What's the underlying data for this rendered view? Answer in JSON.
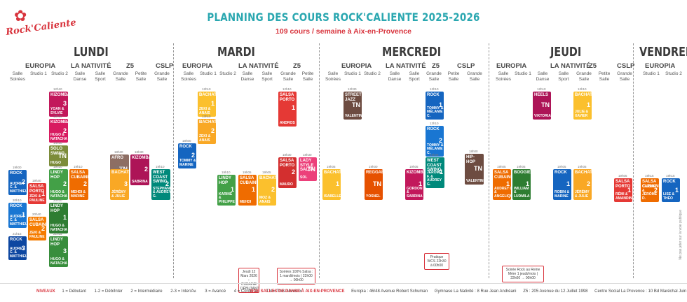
{
  "brand": "Rock'Caliente",
  "title": "PLANNING DES COURS ROCK'CALIENTE 2025-2026",
  "subtitle": "109 cours / semaine à Aix-en-Provence",
  "days": [
    "LUNDI",
    "MARDI",
    "MERCREDI",
    "JEUDI",
    "VENDREDI"
  ],
  "venues": {
    "lundi": [
      "EUROPIA",
      "LA NATIVITÉ",
      "Z5",
      "CSLP"
    ],
    "mardi": [
      "EUROPIA",
      "LA NATIVITÉ",
      "Z5"
    ],
    "mercredi": [
      "EUROPIA",
      "LA NATIVITÉ",
      "Z5",
      "CSLP"
    ],
    "jeudi": [
      "EUROPIA",
      "LA NATIVITÉ",
      "Z5",
      "CSLP"
    ],
    "vendredi": [
      "EUROPIA"
    ]
  },
  "rooms": {
    "salle_soirees": "Salle Soirées",
    "studio1": "Studio 1",
    "studio2": "Studio 2",
    "salle_danse": "Salle Danse",
    "salle_sport": "Salle Sport",
    "grande_salle": "Grande Salle",
    "petite_salle": "Petite Salle"
  },
  "cards": [
    {
      "name": "KIZOMBA",
      "level": "3",
      "teacher": "YOAN & SYLVIE",
      "time": "12h10",
      "color": "#c2185b"
    },
    {
      "name": "KIZOMBA",
      "level": "2",
      "teacher": "HUGO & NATACHA",
      "time": "13h10",
      "color": "#d81b60"
    },
    {
      "name": "SOLO SWING",
      "level": "TN",
      "teacher": "HUGO",
      "time": "14h10",
      "color": "#7c8c3a"
    },
    {
      "name": "ROCK",
      "level": "2",
      "teacher": "AUDREY C. & MATTHIEU",
      "time": "19h00",
      "color": "#1565c0"
    },
    {
      "name": "ROCK",
      "level": "1",
      "teacher": "AUDREY C. & MATTHIEU",
      "time": "20h10",
      "color": "#1976d2"
    },
    {
      "name": "ROCK",
      "level": "3",
      "teacher": "AUDREY C. & MATTHIEU",
      "time": "21h15",
      "color": "#0d47a1"
    },
    {
      "name": "SALSA PORTO",
      "level": "1",
      "teacher": "ZEKI & PAULINE",
      "time": "19h40",
      "color": "#e53935"
    },
    {
      "name": "SALSA CUBAINE",
      "level": "2",
      "teacher": "ZEKI & PAULINE",
      "time": "20h40",
      "color": "#f57c00"
    },
    {
      "name": "LINDY HOP",
      "level": "2",
      "teacher": "HUGO & NATACHA",
      "time": "19h10",
      "color": "#43a047"
    },
    {
      "name": "LINDY HOP",
      "level": "1",
      "teacher": "HUGO & NATACHA",
      "time": "20h10",
      "color": "#2e7d32"
    },
    {
      "name": "LINDY HOP",
      "level": "3",
      "teacher": "HUGO & NATACHA",
      "time": "21h15",
      "color": "#388e3c"
    },
    {
      "name": "SALSA CUBAINE",
      "level": "2",
      "teacher": "MEHDI & MARINE",
      "time": "19h10",
      "color": "#ef6c00"
    },
    {
      "name": "AFRO",
      "level": "TN",
      "teacher": "YOAN & SYLVIE",
      "time": "18h30",
      "color": "#8d6e63"
    },
    {
      "name": "BACHATA",
      "level": "3",
      "teacher": "JÉRÉMY & JULIE",
      "time": "19h10",
      "color": "#f9a825"
    },
    {
      "name": "KIZOMBA",
      "level": "2",
      "teacher": "SABRINA",
      "time": "18h30",
      "color": "#ad1457"
    },
    {
      "name": "WEST COAST SWING",
      "level": "2",
      "teacher": "STEPHANE & AUDREY G.",
      "time": "19h10",
      "color": "#00897b"
    },
    {
      "name": "ROCK",
      "level": "2",
      "teacher": "TOMMY & MARINE",
      "time": "18h00",
      "color": "#1565c0"
    },
    {
      "name": "BACHATA",
      "level": "1",
      "teacher": "ZEKI & ANAIS",
      "time": "12h10",
      "color": "#fbc02d"
    },
    {
      "name": "BACHATA",
      "level": "2",
      "teacher": "ZEKI & ANAIS",
      "time": "13h10",
      "color": "#f9a825"
    },
    {
      "name": "LINDY HOP",
      "level": "1",
      "teacher": "KARINE & PHILIPPE",
      "time": "19h10",
      "color": "#43a047"
    },
    {
      "name": "SALSA CUBAINE",
      "level": "1",
      "teacher": "MEHDI",
      "time": "19h05",
      "color": "#ef6c00"
    },
    {
      "name": "BACHATA",
      "level": "2",
      "teacher": "MOZ & ANAIS",
      "time": "19h05",
      "color": "#fbc02d"
    },
    {
      "name": "SALSA PORTO",
      "level": "1",
      "teacher": "ANDROS",
      "time": "12h10",
      "color": "#e53935"
    },
    {
      "name": "SALSA PORTO",
      "level": "2",
      "teacher": "MAURO",
      "time": "18h30",
      "color": "#d32f2f"
    },
    {
      "name": "LADY STYLE SALSA",
      "level": "TN",
      "teacher": "SOL",
      "time": "18h30",
      "color": "#ec407a"
    },
    {
      "name": "STREET JAZZ",
      "level": "TN",
      "teacher": "VALENTIN",
      "time": "12h30",
      "color": "#6d4c41"
    },
    {
      "name": "ROCK",
      "level": "1",
      "teacher": "TOMMY & MÉLANIE C.",
      "time": "12h10",
      "color": "#1565c0"
    },
    {
      "name": "ROCK",
      "level": "2",
      "teacher": "TOMMY & MÉLANIE C.",
      "time": "13h10",
      "color": "#1976d2"
    },
    {
      "name": "HIP-HOP",
      "level": "TN",
      "teacher": "VALENTIN",
      "time": "18h00",
      "color": "#6d4c41"
    },
    {
      "name": "BACHATA",
      "level": "1",
      "teacher": "ISABELLE",
      "time": "19h05",
      "color": "#fbc02d"
    },
    {
      "name": "REGGAETON",
      "level": "TN",
      "teacher": "YOSNEL",
      "time": "19h00",
      "color": "#e65100"
    },
    {
      "name": "KIZOMBA",
      "level": "1",
      "teacher": "GORDON & SABRINA",
      "time": "19h05",
      "color": "#c2185b"
    },
    {
      "name": "WEST COAST SWING",
      "level": "1",
      "teacher": "JÉRÔME F. & AUDREY G.",
      "time": "19h05",
      "color": "#00897b"
    },
    {
      "name": "HEELS",
      "level": "TN",
      "teacher": "VIKTORIA",
      "time": "12h10",
      "color": "#ad1457"
    },
    {
      "name": "BACHATA",
      "level": "1",
      "teacher": "JULIE & XAVIER",
      "time": "12h10",
      "color": "#fbc02d"
    },
    {
      "name": "ROCK",
      "level": "1",
      "teacher": "ROBIN & MARINE",
      "time": "19h05",
      "color": "#1565c0"
    },
    {
      "name": "BOOGIE",
      "level": "1",
      "teacher": "WILLIAM & LUDMILA",
      "time": "19h05",
      "color": "#2e7d32"
    },
    {
      "name": "SALSA CUBAINE",
      "level": "1",
      "teacher": "AUDREY C. & ANGELIQUE",
      "time": "19h05",
      "color": "#ef6c00"
    },
    {
      "name": "BACHATA",
      "level": "2",
      "teacher": "JÉRÉMY & JULIE",
      "time": "19h05",
      "color": "#f9a825"
    },
    {
      "name": "SALSA PORTO",
      "level": "1",
      "teacher": "RÉMI & AMANDINE",
      "time": "19h05",
      "color": "#e53935"
    },
    {
      "name": "ROCK",
      "level": "1",
      "teacher": "LISE & THÉO",
      "time": "19h15",
      "color": "#1565c0"
    },
    {
      "name": "SALSA CUBAINE",
      "level": "2",
      "teacher": "CARINE & JÉRÔME D.",
      "time": "19h15",
      "color": "#ef6c00"
    }
  ],
  "specials": [
    {
      "text": "Jeudi 12 Mars 2026 : CUBAINE DÉBUTANT",
      "time": ""
    },
    {
      "text": "Soirées 100% Salsa : 1 mardi/mois | 22h00 → 00h00",
      "time": ""
    },
    {
      "text": "Pratique WCS 22h30 à 00h00",
      "time": ""
    },
    {
      "text": "Soirée Rock au Reine Mère 1 jeudi/mois | 22h00 → 00h00",
      "time": ""
    }
  ],
  "legend": {
    "label": "NIVEAUX",
    "items": [
      "1 = Débutant",
      "1-2 = Déb/Inter",
      "2 = Intermédiaire",
      "2-3 = Inter/Av.",
      "3 = Avancé",
      "4 = Confirmé",
      "TN = Tous Niveaux"
    ]
  },
  "salles": {
    "label": "NOS SALLES DE DANSE À AIX-EN-PROVENCE",
    "items": [
      "Europia : 46/48 Avenue Robert Schuman",
      "Gymnase La Nativité : 8 Rue Jean Andréani",
      "Z5 : 205 Avenue du 12 Juillet 1998",
      "Centre Social La Provence : 10 Bd Maréchal Juin"
    ]
  },
  "side_note": "Ne pas jeter sur la voie publique"
}
